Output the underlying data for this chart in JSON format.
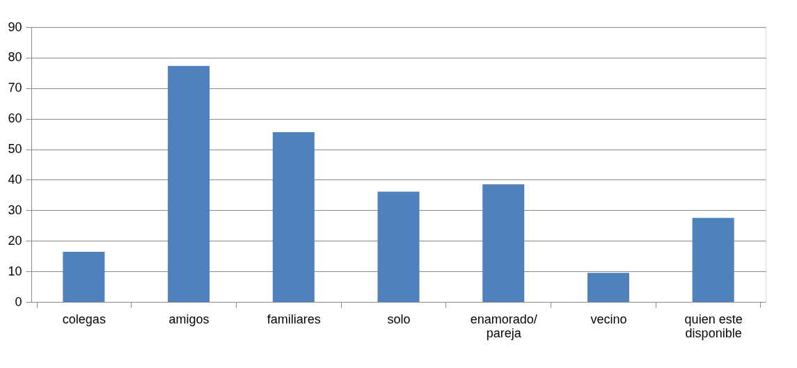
{
  "chart_data": {
    "type": "bar",
    "categories": [
      "colegas",
      "amigos",
      "familiares",
      "solo",
      "enamorado/\npareja",
      "vecino",
      "quien este\ndisponible"
    ],
    "values": [
      16.4,
      77.3,
      55.6,
      36.1,
      38.5,
      9.5,
      27.5
    ],
    "color": "#4f81bd",
    "ylim": [
      0,
      90
    ],
    "yticks": [
      0,
      10,
      20,
      30,
      40,
      50,
      60,
      70,
      80,
      90
    ],
    "grid": "y"
  }
}
